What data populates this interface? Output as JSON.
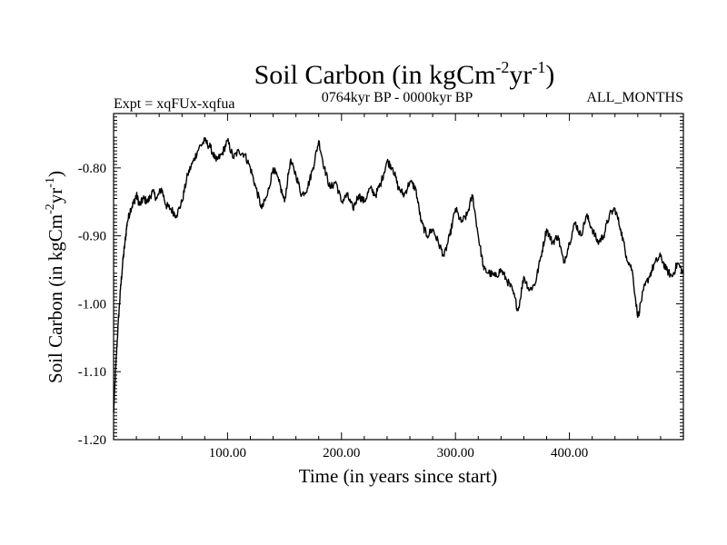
{
  "chart_data": {
    "type": "line",
    "title": "Soil Carbon (in kgCm",
    "title_sup1": "-2",
    "title_mid": "yr",
    "title_sup2": "-1",
    "title_end": ")",
    "subtitle_left": "Expt = xqFUx-xqfua",
    "subtitle_center": "0764kyr BP - 0000kyr BP",
    "subtitle_right": "ALL_MONTHS",
    "xlabel": "Time (in years since start)",
    "ylabel": "Soil Carbon (in kgCm",
    "ylabel_sup1": "-2",
    "ylabel_mid": "yr",
    "ylabel_sup2": "-1",
    "ylabel_end": ")",
    "xlim": [
      0,
      500
    ],
    "ylim": [
      -1.2,
      -0.72
    ],
    "x_ticks": [
      100,
      200,
      300,
      400
    ],
    "x_tick_labels": [
      "100.00",
      "200.00",
      "300.00",
      "400.00"
    ],
    "y_ticks": [
      -1.2,
      -1.1,
      -1.0,
      -0.9,
      -0.8
    ],
    "y_tick_labels": [
      "-1.20",
      "-1.10",
      "-1.00",
      "-0.90",
      "-0.80"
    ],
    "series": [
      {
        "name": "Soil Carbon",
        "color": "#000000",
        "x": [
          0,
          2,
          4,
          6,
          8,
          10,
          12,
          15,
          18,
          20,
          23,
          26,
          30,
          34,
          38,
          42,
          46,
          50,
          55,
          60,
          65,
          70,
          75,
          80,
          85,
          90,
          95,
          100,
          105,
          110,
          115,
          120,
          125,
          130,
          135,
          140,
          145,
          150,
          155,
          160,
          165,
          170,
          175,
          180,
          185,
          190,
          195,
          200,
          205,
          210,
          215,
          220,
          225,
          230,
          235,
          240,
          245,
          250,
          255,
          260,
          265,
          270,
          275,
          280,
          285,
          290,
          295,
          300,
          305,
          310,
          315,
          320,
          325,
          330,
          335,
          340,
          345,
          350,
          355,
          360,
          365,
          370,
          375,
          380,
          385,
          390,
          395,
          400,
          405,
          410,
          415,
          420,
          425,
          430,
          435,
          440,
          445,
          450,
          455,
          460,
          465,
          470,
          475,
          480,
          485,
          490,
          495,
          500
        ],
        "y": [
          -1.16,
          -1.09,
          -1.03,
          -0.98,
          -0.94,
          -0.91,
          -0.88,
          -0.86,
          -0.85,
          -0.84,
          -0.855,
          -0.845,
          -0.85,
          -0.835,
          -0.845,
          -0.83,
          -0.855,
          -0.86,
          -0.87,
          -0.85,
          -0.81,
          -0.79,
          -0.77,
          -0.76,
          -0.77,
          -0.79,
          -0.78,
          -0.76,
          -0.785,
          -0.775,
          -0.78,
          -0.8,
          -0.83,
          -0.86,
          -0.84,
          -0.8,
          -0.82,
          -0.85,
          -0.79,
          -0.81,
          -0.84,
          -0.83,
          -0.8,
          -0.76,
          -0.8,
          -0.83,
          -0.82,
          -0.85,
          -0.84,
          -0.86,
          -0.84,
          -0.85,
          -0.83,
          -0.84,
          -0.82,
          -0.79,
          -0.8,
          -0.83,
          -0.84,
          -0.82,
          -0.83,
          -0.88,
          -0.9,
          -0.89,
          -0.91,
          -0.93,
          -0.9,
          -0.86,
          -0.88,
          -0.87,
          -0.84,
          -0.9,
          -0.95,
          -0.955,
          -0.96,
          -0.95,
          -0.965,
          -0.98,
          -1.01,
          -0.96,
          -0.98,
          -0.97,
          -0.93,
          -0.89,
          -0.91,
          -0.9,
          -0.94,
          -0.91,
          -0.88,
          -0.9,
          -0.87,
          -0.89,
          -0.91,
          -0.9,
          -0.87,
          -0.86,
          -0.89,
          -0.93,
          -0.95,
          -1.02,
          -0.98,
          -0.96,
          -0.94,
          -0.93,
          -0.95,
          -0.96,
          -0.94,
          -0.955
        ]
      }
    ]
  }
}
